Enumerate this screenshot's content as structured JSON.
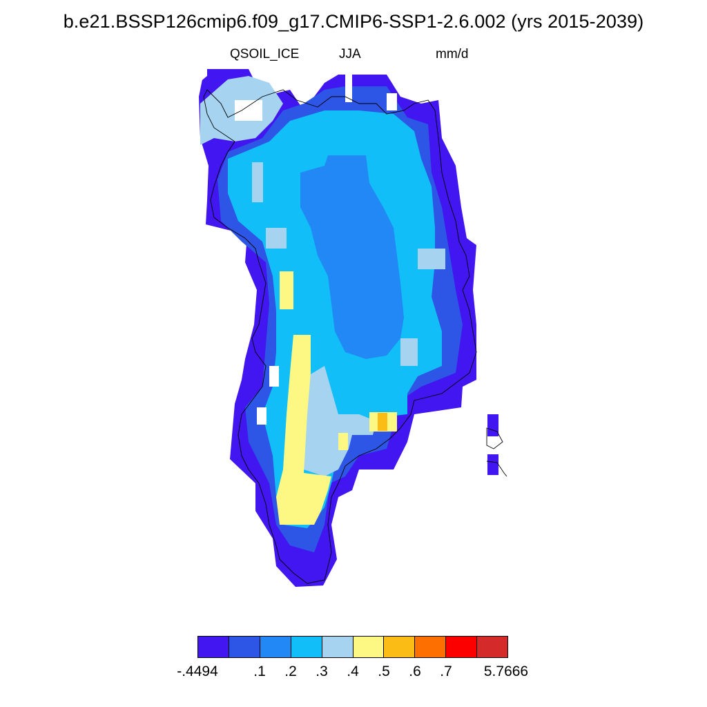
{
  "figure": {
    "title": "b.e21.BSSP126cmip6.f09_g17.CMIP6-SSP1-2.6.002 (yrs 2015-2039)",
    "variable": "QSOIL_ICE",
    "season": "JJA",
    "units": "mm/d"
  },
  "colorbar": {
    "colors": [
      "#4216f0",
      "#2e56e6",
      "#2288f5",
      "#12bef8",
      "#a6d4f0",
      "#fdf784",
      "#fbbc15",
      "#fd7000",
      "#fc0000",
      "#d52a2a"
    ],
    "labels": [
      "-.4494",
      ".1",
      ".2",
      ".3",
      ".4",
      ".5",
      ".6",
      ".7",
      "5.7666"
    ]
  }
}
